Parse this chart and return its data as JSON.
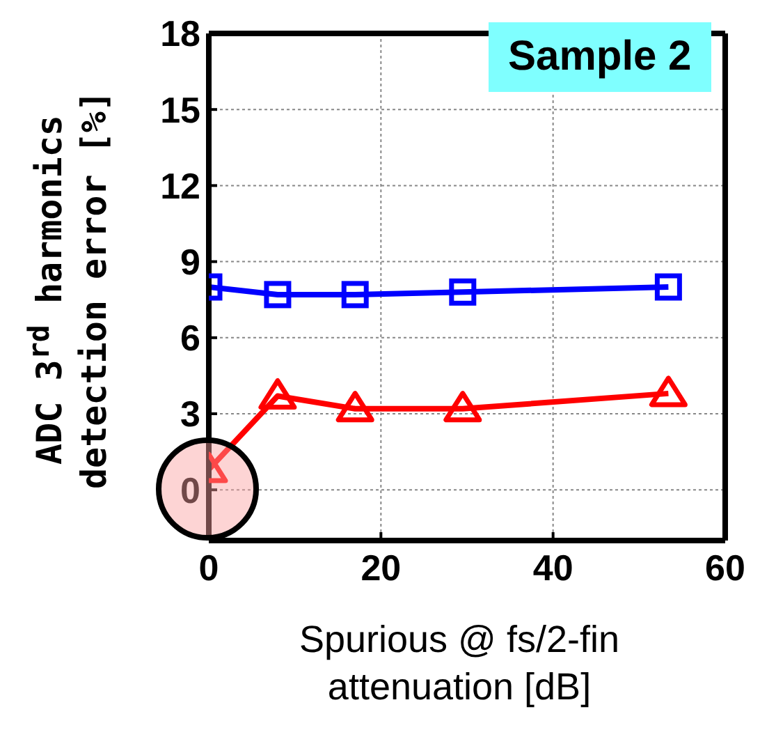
{
  "chart_data": {
    "type": "line",
    "xlabel": "Spurious @ fs/2-fin attenuation [dB]",
    "ylabel": "ADC 3$^{rd}$ harmonics detection error [%]",
    "annotations": [
      "Sample 2"
    ],
    "x": [
      0,
      8,
      17,
      29.5,
      53.4
    ],
    "series": [
      {
        "color": "#0000ff",
        "marker": "square",
        "values": [
          8.0,
          7.7,
          7.7,
          7.8,
          8.0
        ]
      },
      {
        "color": "#ff0000",
        "marker": "triangle",
        "values": [
          0.8,
          3.7,
          3.2,
          3.2,
          3.8
        ]
      }
    ],
    "xlim": [
      0,
      60
    ],
    "xticks": [
      0,
      20,
      40,
      60
    ],
    "ylim": [
      -2,
      18
    ],
    "yticks": [
      0,
      3,
      6,
      9,
      12,
      15,
      18
    ],
    "grid": true,
    "legend": false,
    "line_style": "solid"
  }
}
